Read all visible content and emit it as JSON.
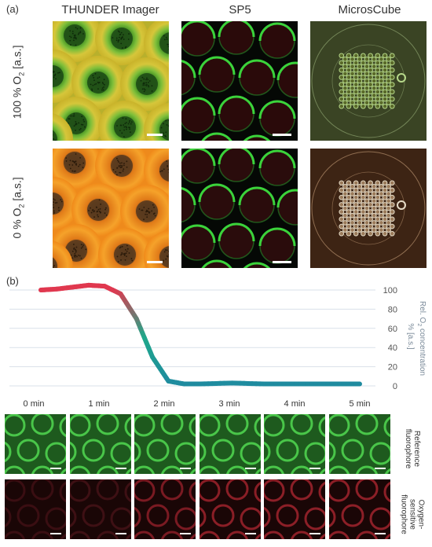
{
  "panel_a": {
    "label": "(a)",
    "columns": [
      "THUNDER Imager",
      "SP5",
      "MicrosCube"
    ],
    "rows": [
      {
        "text": "100 % O",
        "sub": "2",
        "tail": " [a.s.]"
      },
      {
        "text": "0 % O",
        "sub": "2",
        "tail": " [a.s.]"
      }
    ]
  },
  "panel_b": {
    "label": "(b)",
    "time_labels": [
      "0 min",
      "1 min",
      "2 min",
      "3 min",
      "4 min",
      "5 min"
    ],
    "row_labels": [
      {
        "line1": "Reference",
        "line2": "fluorophore"
      },
      {
        "line1": "Oxygen-",
        "line2": "sensitive",
        "line3": "fluorophore"
      }
    ],
    "ylabel": {
      "line1": "Rel. O",
      "sub": "2",
      "line1_tail": " concentration",
      "line2": "% [a.s.]"
    }
  },
  "chart_data": {
    "type": "line",
    "title": "",
    "xlabel": "",
    "ylabel": "Rel. O2 concentration % [a.s.]",
    "ylim": [
      0,
      100
    ],
    "yticks": [
      0,
      20,
      40,
      60,
      80,
      100
    ],
    "grid": true,
    "series": [
      {
        "x": [
          0,
          0.25,
          0.5,
          0.75,
          1.0,
          1.25,
          1.5,
          1.75,
          2.0,
          2.25,
          2.5,
          3.0,
          3.5,
          4.0,
          4.5,
          5.0
        ],
        "values": [
          100,
          101,
          103,
          105,
          104,
          96,
          70,
          30,
          5,
          2,
          2,
          3,
          2,
          2,
          2,
          2
        ]
      }
    ],
    "colors": {
      "high": "#e0384f",
      "mid": "#1fa88a",
      "low": "#1f8aa0"
    }
  }
}
